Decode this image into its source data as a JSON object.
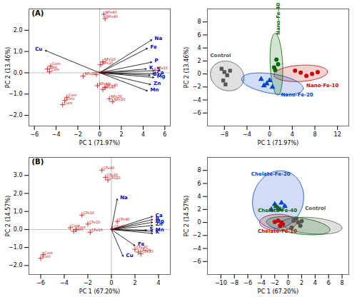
{
  "chart_data": [
    {
      "type": "biplot",
      "title": "(A)",
      "xlabel": "PC 1 (71.97%)",
      "ylabel": "PC 2 (13.46%)",
      "xlim": [
        -6.5,
        6.5
      ],
      "ylim": [
        -2.5,
        3.0
      ],
      "xticks": [
        -6,
        -4,
        -2,
        0,
        2,
        4,
        6
      ],
      "yticks": [
        -2,
        -1,
        0,
        1,
        2
      ],
      "marker": "plus",
      "arrows": {
        "color": "black",
        "labels": {
          "color": "#0000CC"
        },
        "items": [
          {
            "name": "Na",
            "x": 4.8,
            "y": 1.55
          },
          {
            "name": "Fe",
            "x": 4.4,
            "y": 1.15
          },
          {
            "name": "P",
            "x": 4.8,
            "y": 0.5
          },
          {
            "name": "S",
            "x": 5.0,
            "y": 0.1
          },
          {
            "name": "K",
            "x": 4.3,
            "y": 0.18
          },
          {
            "name": "Ca",
            "x": 5.0,
            "y": -0.05
          },
          {
            "name": "B",
            "x": 4.65,
            "y": -0.12
          },
          {
            "name": "Mg",
            "x": 5.0,
            "y": -0.22
          },
          {
            "name": "Zn",
            "x": 4.7,
            "y": -0.55
          },
          {
            "name": "Mn",
            "x": 4.4,
            "y": -0.85
          },
          {
            "name": "Cu",
            "x": -5.0,
            "y": 1.05
          }
        ]
      },
      "points": [
        {
          "label": "NFe40",
          "x": 0.4,
          "y": 2.75,
          "color": "#CC0000"
        },
        {
          "label": "NFe40",
          "x": 0.5,
          "y": 2.55,
          "color": "#CC0000"
        },
        {
          "label": "NFe10",
          "x": 0.3,
          "y": 0.52,
          "color": "#CC0000"
        },
        {
          "label": "NFe10",
          "x": 0.1,
          "y": 0.38,
          "color": "#CC0000"
        },
        {
          "label": "NFe10",
          "x": 5.1,
          "y": 0.12,
          "color": "#CC0000"
        },
        {
          "label": "NFe20",
          "x": -1.5,
          "y": -0.15,
          "color": "#CC0000"
        },
        {
          "label": "NFe20",
          "x": -0.3,
          "y": -0.08,
          "color": "#CC0000"
        },
        {
          "label": "NFe40",
          "x": -0.2,
          "y": -0.6,
          "color": "#CC0000"
        },
        {
          "label": "NFe40",
          "x": 0.5,
          "y": -0.68,
          "color": "#CC0000"
        },
        {
          "label": "NFe40",
          "x": 0.3,
          "y": -0.78,
          "color": "#CC0000"
        },
        {
          "label": "NFe20",
          "x": 0.9,
          "y": -1.22,
          "color": "#CC0000"
        },
        {
          "label": "NFe20",
          "x": 1.2,
          "y": -1.35,
          "color": "#CC0000"
        },
        {
          "label": "Cont",
          "x": -4.5,
          "y": 0.32,
          "color": "#CC0000"
        },
        {
          "label": "Cont",
          "x": -4.8,
          "y": 0.18,
          "color": "#CC0000"
        },
        {
          "label": "Cont",
          "x": -4.6,
          "y": 0.05,
          "color": "#CC0000"
        },
        {
          "label": "Cont",
          "x": -3.0,
          "y": -1.15,
          "color": "#CC0000"
        },
        {
          "label": "Cont",
          "x": -3.2,
          "y": -1.3,
          "color": "#CC0000"
        },
        {
          "label": "Cont",
          "x": -3.4,
          "y": -1.5,
          "color": "#CC0000"
        }
      ]
    },
    {
      "type": "cluster",
      "xlabel": "PC 1 (71.97%)",
      "ylabel": "PC 2 (13.46%)",
      "xlim": [
        -11,
        14
      ],
      "ylim": [
        -8,
        10
      ],
      "xticks": [
        -8,
        -4,
        0,
        4,
        8,
        12
      ],
      "yticks": [
        -6,
        -4,
        -2,
        0,
        2,
        4,
        6,
        8
      ],
      "groups": [
        {
          "name": "Control",
          "color": "#555555",
          "marker": "square",
          "points": [
            [
              -8.5,
              0.8
            ],
            [
              -8.0,
              0.3
            ],
            [
              -7.5,
              -0.2
            ],
            [
              -8.2,
              -1.0
            ],
            [
              -7.8,
              -1.6
            ],
            [
              -7.0,
              0.5
            ]
          ],
          "ellipse": {
            "cx": -7.5,
            "cy": -0.3,
            "w": 6.0,
            "h": 4.5,
            "angle": -12
          },
          "label_pos": [
            -10.5,
            2.8
          ]
        },
        {
          "name": "Nano-Fe-10",
          "color": "#CC0000",
          "marker": "circle",
          "points": [
            [
              4.5,
              0.5
            ],
            [
              5.5,
              0.2
            ],
            [
              6.5,
              -0.3
            ],
            [
              7.5,
              0.0
            ],
            [
              8.5,
              0.3
            ]
          ],
          "ellipse": {
            "cx": 5.5,
            "cy": 0.1,
            "w": 9.5,
            "h": 2.5,
            "angle": 3
          },
          "label_pos": [
            6.5,
            -1.8
          ]
        },
        {
          "name": "Nano-Fe-20",
          "color": "#0044CC",
          "marker": "triangle",
          "points": [
            [
              -1.5,
              -0.8
            ],
            [
              -0.5,
              -1.5
            ],
            [
              0.5,
              -2.0
            ],
            [
              0.0,
              -1.0
            ],
            [
              -1.0,
              -1.8
            ]
          ],
          "ellipse": {
            "cx": 0.5,
            "cy": -1.5,
            "w": 11.0,
            "h": 3.0,
            "angle": -8
          },
          "label_pos": [
            2.0,
            -3.2
          ]
        },
        {
          "name": "Nano-Fe-40",
          "color": "#006600",
          "marker": "circle",
          "points": [
            [
              1.2,
              2.2
            ],
            [
              1.5,
              1.5
            ],
            [
              1.0,
              0.6
            ],
            [
              0.8,
              1.0
            ]
          ],
          "ellipse": {
            "cx": 1.2,
            "cy": 1.5,
            "w": 2.2,
            "h": 9.5,
            "angle": 3
          },
          "label_pos": [
            1.5,
            6.0
          ]
        }
      ]
    },
    {
      "type": "biplot",
      "title": "(B)",
      "xlabel": "PC 1 (67.20%)",
      "ylabel": "PC 2 (14.57%)",
      "xlim": [
        -7,
        5
      ],
      "ylim": [
        -2.5,
        4.0
      ],
      "xticks": [
        -6,
        -4,
        -2,
        0,
        2,
        4
      ],
      "yticks": [
        -2,
        -1,
        0,
        1,
        2,
        3
      ],
      "marker": "plus",
      "arrows": {
        "color": "black",
        "labels": {
          "color": "#0000CC"
        },
        "items": [
          {
            "name": "Na",
            "x": 0.5,
            "y": 1.7
          },
          {
            "name": "Ca",
            "x": 3.5,
            "y": 0.72
          },
          {
            "name": "B",
            "x": 3.5,
            "y": 0.55
          },
          {
            "name": "Mg",
            "x": 3.5,
            "y": 0.4
          },
          {
            "name": "Zn",
            "x": 3.5,
            "y": 0.22
          },
          {
            "name": "S",
            "x": 3.0,
            "y": -0.05
          },
          {
            "name": "Mn",
            "x": 3.5,
            "y": -0.1
          },
          {
            "name": "K",
            "x": 3.5,
            "y": -0.22
          },
          {
            "name": "Fe",
            "x": 2.0,
            "y": -0.9
          },
          {
            "name": "Cu",
            "x": 1.0,
            "y": -1.5
          }
        ]
      },
      "points": [
        {
          "label": "CFe40",
          "x": -0.8,
          "y": 3.3,
          "color": "#CC0000"
        },
        {
          "label": "CFe20",
          "x": -0.5,
          "y": 2.9,
          "color": "#CC0000"
        },
        {
          "label": "CFe20",
          "x": -0.3,
          "y": 2.75,
          "color": "#CC0000"
        },
        {
          "label": "CFe10",
          "x": -2.5,
          "y": 0.8,
          "color": "#CC0000"
        },
        {
          "label": "CFe10",
          "x": -2.0,
          "y": 0.3,
          "color": "#CC0000"
        },
        {
          "label": "CFe10",
          "x": -1.8,
          "y": -0.15,
          "color": "#CC0000"
        },
        {
          "label": "CFe40",
          "x": 0.5,
          "y": 0.45,
          "color": "#CC0000"
        },
        {
          "label": "CFe40",
          "x": 0.1,
          "y": 0.05,
          "color": "#CC0000"
        },
        {
          "label": "CFe20",
          "x": 2.0,
          "y": -1.1,
          "color": "#CC0000"
        },
        {
          "label": "CFe20",
          "x": 2.3,
          "y": -1.25,
          "color": "#CC0000"
        },
        {
          "label": "CFe20",
          "x": 2.5,
          "y": -1.35,
          "color": "#CC0000"
        },
        {
          "label": "Cont",
          "x": -3.5,
          "y": 0.1,
          "color": "#CC0000"
        },
        {
          "label": "Cont",
          "x": -3.0,
          "y": 0.0,
          "color": "#CC0000"
        },
        {
          "label": "Cont",
          "x": -3.2,
          "y": -0.1,
          "color": "#CC0000"
        },
        {
          "label": "Cont",
          "x": -5.8,
          "y": -1.4,
          "color": "#CC0000"
        },
        {
          "label": "Cont",
          "x": -6.0,
          "y": -1.6,
          "color": "#CC0000"
        }
      ]
    },
    {
      "type": "cluster",
      "xlabel": "PC 1 (67.20%)",
      "ylabel": "PC 2 (14.57%)",
      "xlim": [
        -12,
        9
      ],
      "ylim": [
        -8,
        10
      ],
      "xticks": [
        -10,
        -8,
        -6,
        -4,
        -2,
        0,
        2,
        4,
        6,
        8
      ],
      "yticks": [
        -6,
        -4,
        -2,
        0,
        2,
        4,
        6,
        8
      ],
      "groups": [
        {
          "name": "Control",
          "color": "#555555",
          "marker": "circle",
          "points": [
            [
              0.8,
              0.3
            ],
            [
              1.5,
              0.0
            ],
            [
              1.8,
              -0.5
            ],
            [
              0.5,
              -0.8
            ],
            [
              1.2,
              0.6
            ],
            [
              2.0,
              0.2
            ]
          ],
          "ellipse": {
            "cx": 3.5,
            "cy": -0.5,
            "w": 9.0,
            "h": 2.5,
            "angle": -5
          },
          "label_pos": [
            2.5,
            2.2
          ]
        },
        {
          "name": "Chelate-Fe-10",
          "color": "#CC0000",
          "marker": "circle",
          "points": [
            [
              -1.5,
              0.3
            ],
            [
              -1.0,
              0.0
            ],
            [
              -1.2,
              -0.5
            ],
            [
              -2.0,
              0.1
            ],
            [
              -0.8,
              -0.3
            ]
          ],
          "ellipse": {
            "cx": -1.5,
            "cy": 0.0,
            "w": 5.5,
            "h": 2.5,
            "angle": 0
          },
          "label_pos": [
            -4.5,
            -1.3
          ]
        },
        {
          "name": "Chelate-Fe-20",
          "color": "#0044CC",
          "marker": "triangle",
          "points": [
            [
              -2.0,
              2.8
            ],
            [
              -1.5,
              2.2
            ],
            [
              -1.0,
              3.0
            ],
            [
              -0.5,
              2.5
            ],
            [
              -2.5,
              2.0
            ]
          ],
          "ellipse": {
            "cx": -1.5,
            "cy": 3.5,
            "w": 7.5,
            "h": 9.0,
            "angle": -15
          },
          "label_pos": [
            -5.5,
            7.5
          ]
        },
        {
          "name": "Chelate-Fe-40",
          "color": "#006600",
          "marker": "triangle",
          "points": [
            [
              -1.8,
              2.5
            ],
            [
              -1.2,
              2.0
            ]
          ],
          "ellipse": {
            "cx": 1.5,
            "cy": -0.5,
            "w": 9.5,
            "h": 2.5,
            "angle": -8
          },
          "label_pos": [
            -4.5,
            1.8
          ]
        }
      ]
    }
  ]
}
